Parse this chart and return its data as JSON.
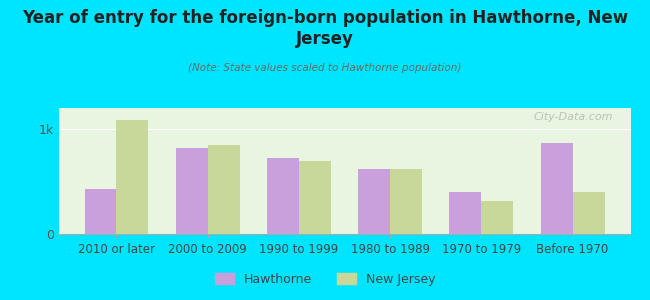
{
  "title": "Year of entry for the foreign-born population in Hawthorne, New\nJersey",
  "subtitle": "(Note: State values scaled to Hawthorne population)",
  "categories": [
    "2010 or later",
    "2000 to 2009",
    "1990 to 1999",
    "1980 to 1989",
    "1970 to 1979",
    "Before 1970"
  ],
  "hawthorne_values": [
    430,
    820,
    720,
    620,
    400,
    870
  ],
  "nj_values": [
    1090,
    850,
    700,
    620,
    310,
    400
  ],
  "hawthorne_color": "#c9a0dc",
  "nj_color": "#c8d89a",
  "background_outer": "#00e5ff",
  "background_inner_top": "#e8f5e0",
  "background_inner_bottom": "#f5f5f0",
  "ylim": [
    0,
    1200
  ],
  "ytick_labels": [
    "0",
    "1k"
  ],
  "ytick_values": [
    0,
    1000
  ],
  "bar_width": 0.35,
  "legend_labels": [
    "Hawthorne",
    "New Jersey"
  ],
  "watermark": "City-Data.com"
}
